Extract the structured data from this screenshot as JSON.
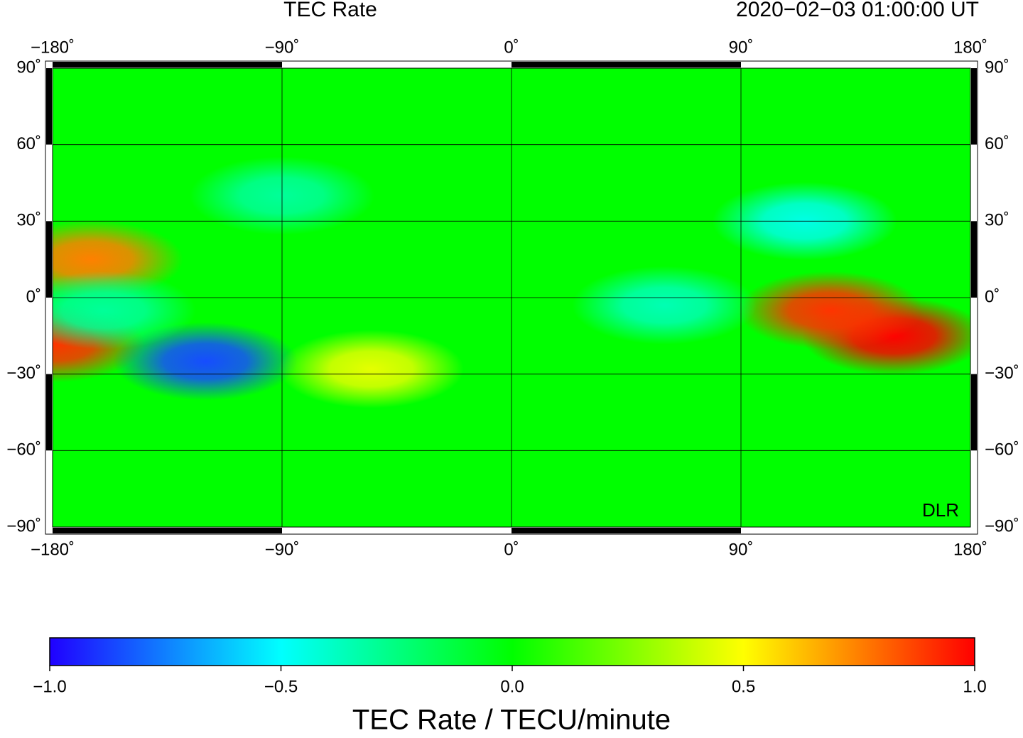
{
  "chart_data": {
    "type": "heatmap-map",
    "title": "TEC Rate",
    "timestamp": "2020−02−03  01:00:00 UT",
    "credit": "DLR",
    "xlim": [
      -180,
      180
    ],
    "ylim": [
      -90,
      90
    ],
    "xticks": [
      {
        "value": -180,
        "label": "−180˚"
      },
      {
        "value": -90,
        "label": "−90˚"
      },
      {
        "value": 0,
        "label": "0˚"
      },
      {
        "value": 90,
        "label": "90˚"
      },
      {
        "value": 180,
        "label": "180˚"
      }
    ],
    "yticks": [
      {
        "value": 90,
        "label": "90˚"
      },
      {
        "value": 60,
        "label": "60˚"
      },
      {
        "value": 30,
        "label": "30˚"
      },
      {
        "value": 0,
        "label": "0˚"
      },
      {
        "value": -30,
        "label": "−30˚"
      },
      {
        "value": -60,
        "label": "−60˚"
      },
      {
        "value": -90,
        "label": "−90˚"
      }
    ],
    "grid": true,
    "colorbar": {
      "label": "TEC Rate / TECU/minute",
      "lim": [
        -1,
        1
      ],
      "ticks": [
        {
          "value": -1,
          "label": "−1.0"
        },
        {
          "value": -0.5,
          "label": "−0.5"
        },
        {
          "value": 0,
          "label": "0.0"
        },
        0.5,
        {
          "value": 1,
          "label": "1.0"
        }
      ],
      "colorscale": [
        "#2000ff",
        "#00ffff",
        "#00ff00",
        "#ffff00",
        "#ff0000"
      ]
    },
    "anomalies": [
      {
        "lon": 150,
        "lat": -15,
        "value": 1.0
      },
      {
        "lon": 125,
        "lat": -5,
        "value": 0.9
      },
      {
        "lon": -165,
        "lat": 15,
        "value": 0.75
      },
      {
        "lon": -180,
        "lat": -18,
        "value": 0.9
      },
      {
        "lon": -120,
        "lat": -25,
        "value": -0.85
      },
      {
        "lon": -55,
        "lat": -28,
        "value": 0.45
      },
      {
        "lon": 60,
        "lat": -3,
        "value": -0.35
      },
      {
        "lon": 115,
        "lat": 30,
        "value": -0.45
      },
      {
        "lon": -90,
        "lat": 40,
        "value": -0.3
      },
      {
        "lon": -160,
        "lat": -5,
        "value": -0.3
      }
    ]
  }
}
